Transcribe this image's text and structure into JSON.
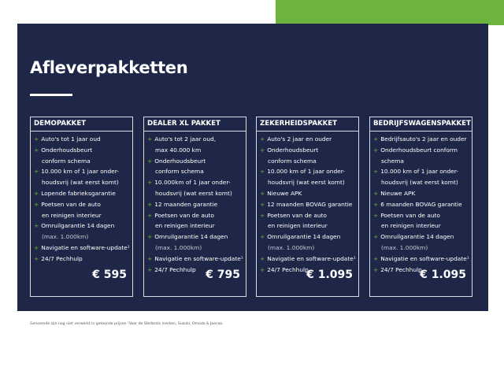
{
  "title": "Afleverpakketten",
  "packages": [
    {
      "name": "DEMOPAKKET",
      "items": [
        [
          "Auto's tot 1 jaar oud"
        ],
        [
          "Onderhoudsbeurt",
          "conform schema"
        ],
        [
          "10.000 km of 1 jaar onder-",
          "houdsvrij (wat eerst komt)"
        ],
        [
          "Lopende fabrieksgarantie"
        ],
        [
          "Poetsen van de auto",
          "en reinigen interieur"
        ],
        [
          "Omruilgarantie 14 dagen",
          "(max. 1.000km)"
        ],
        [
          "Navigatie en software-update¹"
        ],
        [
          "24/7 Pechhulp"
        ]
      ],
      "price": "€ 595"
    },
    {
      "name": "DEALER XL PAKKET",
      "items": [
        [
          "Auto's tot 2 jaar oud,",
          "max 40.000 km"
        ],
        [
          "Onderhoudsbeurt",
          "conform schema"
        ],
        [
          "10.000km of 1 jaar onder-",
          "houdsvrij (wat eerst komt)"
        ],
        [
          "12 maanden garantie"
        ],
        [
          "Poetsen van de auto",
          "en reinigen interieur"
        ],
        [
          "Omruilgarantie 14 dagen",
          "(max. 1.000km)"
        ],
        [
          "Navigatie en software-update¹"
        ],
        [
          "24/7 Pechhulp"
        ]
      ],
      "price": "€ 795"
    },
    {
      "name": "ZEKERHEIDSPAKKET",
      "items": [
        [
          "Auto's 2 jaar en ouder"
        ],
        [
          "Onderhoudsbeurt",
          "conform schema"
        ],
        [
          "10.000 km of 1 jaar onder-",
          "houdsvrij (wat eerst komt)"
        ],
        [
          "Nieuwe APK"
        ],
        [
          "12 maanden BOVAG garantie"
        ],
        [
          "Poetsen van de auto",
          "en reinigen interieur"
        ],
        [
          "Omruilgarantie 14 dagen",
          "(max. 1.000km)"
        ],
        [
          "Navigatie en software-update¹"
        ],
        [
          "24/7 Pechhulp"
        ]
      ],
      "price": "€ 1.095"
    },
    {
      "name": "BEDRIJFSWAGENSPAKKET",
      "items": [
        [
          "Bedrijfsauto's 2 jaar en ouder"
        ],
        [
          "Onderhoudsbeurt conform",
          "schema"
        ],
        [
          "10.000 km of 1 jaar onder-",
          "houdsvrij (wat eerst komt)"
        ],
        [
          "Nieuwe APK"
        ],
        [
          "6 maanden BOVAG garantie"
        ],
        [
          "Poetsen van de auto",
          "en reinigen interieur"
        ],
        [
          "Omruilgarantie 14 dagen",
          "(max. 1.000km)"
        ],
        [
          "Navigatie en software-update¹"
        ],
        [
          "24/7 Pechhulp"
        ]
      ],
      "price": "€ 1.095"
    }
  ],
  "footnote": "Genoemde zijn nog niet verwerkt in getoonde prijzen  ¹Voor de Stellantis merken, Suzuki, Omoda & Jaecoo."
}
